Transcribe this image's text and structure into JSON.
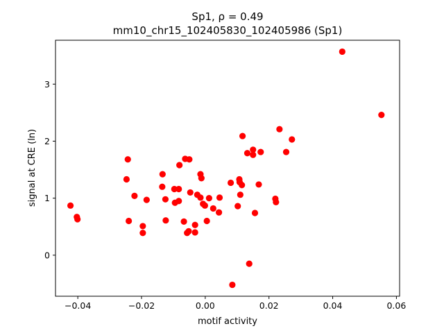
{
  "chart_data": {
    "type": "scatter",
    "title_line1": "Sp1, ρ = 0.49",
    "title_line2": "mm10_chr15_102405830_102405986 (Sp1)",
    "xlabel": "motif activity",
    "ylabel": "signal at CRE (ln)",
    "xlim": [
      -0.047,
      0.061
    ],
    "ylim": [
      -0.72,
      3.77
    ],
    "xticks": [
      {
        "value": -0.04,
        "label": "−0.04"
      },
      {
        "value": -0.02,
        "label": "−0.02"
      },
      {
        "value": 0.0,
        "label": "0.00"
      },
      {
        "value": 0.02,
        "label": "0.02"
      },
      {
        "value": 0.04,
        "label": "0.04"
      },
      {
        "value": 0.06,
        "label": "0.06"
      }
    ],
    "yticks": [
      {
        "value": 0,
        "label": "0"
      },
      {
        "value": 1,
        "label": "1"
      },
      {
        "value": 2,
        "label": "2"
      },
      {
        "value": 3,
        "label": "3"
      }
    ],
    "marker_color": "#ff0000",
    "grid": false,
    "points": [
      {
        "x": -0.0423,
        "y": 0.87
      },
      {
        "x": -0.0403,
        "y": 0.67
      },
      {
        "x": -0.0401,
        "y": 0.63
      },
      {
        "x": -0.0243,
        "y": 1.68
      },
      {
        "x": -0.0247,
        "y": 1.33
      },
      {
        "x": -0.024,
        "y": 0.6
      },
      {
        "x": -0.0222,
        "y": 1.04
      },
      {
        "x": -0.0196,
        "y": 0.51
      },
      {
        "x": -0.0196,
        "y": 0.39
      },
      {
        "x": -0.0184,
        "y": 0.97
      },
      {
        "x": -0.0134,
        "y": 1.42
      },
      {
        "x": -0.0135,
        "y": 1.2
      },
      {
        "x": -0.0125,
        "y": 0.98
      },
      {
        "x": -0.0124,
        "y": 0.61
      },
      {
        "x": -0.0097,
        "y": 1.16
      },
      {
        "x": -0.0095,
        "y": 0.92
      },
      {
        "x": -0.0081,
        "y": 1.58
      },
      {
        "x": -0.0083,
        "y": 1.16
      },
      {
        "x": -0.0083,
        "y": 0.95
      },
      {
        "x": -0.0063,
        "y": 1.69
      },
      {
        "x": -0.005,
        "y": 1.68
      },
      {
        "x": -0.0067,
        "y": 0.59
      },
      {
        "x": -0.0052,
        "y": 0.42
      },
      {
        "x": -0.0057,
        "y": 0.39
      },
      {
        "x": -0.0047,
        "y": 1.1
      },
      {
        "x": -0.0032,
        "y": 0.53
      },
      {
        "x": -0.0032,
        "y": 0.4
      },
      {
        "x": -0.0015,
        "y": 1.42
      },
      {
        "x": -0.0012,
        "y": 1.35
      },
      {
        "x": -0.0025,
        "y": 1.06
      },
      {
        "x": -0.0015,
        "y": 1.01
      },
      {
        "x": -0.0007,
        "y": 0.9
      },
      {
        "x": -0.0001,
        "y": 0.87
      },
      {
        "x": 0.0012,
        "y": 1.0
      },
      {
        "x": 0.0005,
        "y": 0.6
      },
      {
        "x": 0.0025,
        "y": 0.82
      },
      {
        "x": 0.0045,
        "y": 1.01
      },
      {
        "x": 0.0043,
        "y": 0.75
      },
      {
        "x": 0.008,
        "y": 1.27
      },
      {
        "x": 0.0085,
        "y": -0.52
      },
      {
        "x": 0.0102,
        "y": 0.86
      },
      {
        "x": 0.0107,
        "y": 1.33
      },
      {
        "x": 0.0108,
        "y": 1.28
      },
      {
        "x": 0.011,
        "y": 1.06
      },
      {
        "x": 0.0115,
        "y": 1.23
      },
      {
        "x": 0.0117,
        "y": 2.09
      },
      {
        "x": 0.0132,
        "y": 1.79
      },
      {
        "x": 0.0138,
        "y": -0.15
      },
      {
        "x": 0.015,
        "y": 1.85
      },
      {
        "x": 0.015,
        "y": 1.76
      },
      {
        "x": 0.0156,
        "y": 0.74
      },
      {
        "x": 0.0168,
        "y": 1.24
      },
      {
        "x": 0.0174,
        "y": 1.81
      },
      {
        "x": 0.022,
        "y": 0.99
      },
      {
        "x": 0.0222,
        "y": 0.93
      },
      {
        "x": 0.0233,
        "y": 2.21
      },
      {
        "x": 0.0254,
        "y": 1.81
      },
      {
        "x": 0.0272,
        "y": 2.03
      },
      {
        "x": 0.043,
        "y": 3.57
      },
      {
        "x": 0.0553,
        "y": 2.46
      }
    ]
  }
}
